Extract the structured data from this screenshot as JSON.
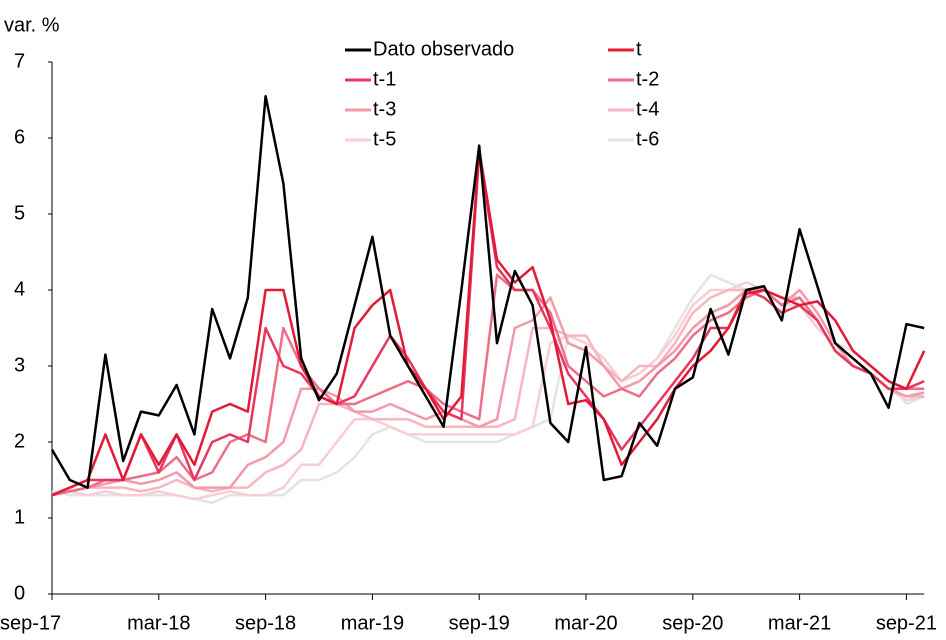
{
  "chart_data": {
    "type": "line",
    "y_label": "var. %",
    "categories": [
      "sep-17",
      null,
      null,
      null,
      null,
      null,
      "mar-18",
      null,
      null,
      null,
      null,
      null,
      "sep-18",
      null,
      null,
      null,
      null,
      null,
      "mar-19",
      null,
      null,
      null,
      null,
      null,
      "sep-19",
      null,
      null,
      null,
      null,
      null,
      "mar-20",
      null,
      null,
      null,
      null,
      null,
      "sep-20",
      null,
      null,
      null,
      null,
      null,
      "mar-21",
      null,
      null,
      null,
      null,
      null,
      "sep-21",
      null
    ],
    "ylim": [
      0,
      7
    ],
    "yticks": [
      0,
      1,
      2,
      3,
      4,
      5,
      6,
      7
    ],
    "series": [
      {
        "name": "t-6",
        "color": "#e4e4e6",
        "values": [
          1.35,
          1.3,
          1.3,
          1.3,
          1.3,
          1.3,
          1.3,
          1.3,
          1.25,
          1.2,
          1.3,
          1.3,
          1.3,
          1.3,
          1.5,
          1.5,
          1.6,
          1.8,
          2.1,
          2.2,
          2.1,
          2.0,
          2.0,
          2.0,
          2.0,
          2.0,
          2.1,
          2.2,
          2.3,
          3.4,
          3.3,
          3.1,
          2.8,
          2.9,
          3.1,
          3.5,
          3.9,
          4.2,
          4.1,
          4.0,
          4.0,
          3.8,
          3.8,
          3.5,
          3.3,
          3.2,
          3.0,
          2.8,
          2.5,
          2.6
        ]
      },
      {
        "name": "t-5",
        "color": "#f8cdd4",
        "values": [
          1.3,
          1.35,
          1.3,
          1.35,
          1.3,
          1.3,
          1.35,
          1.3,
          1.25,
          1.3,
          1.35,
          1.3,
          1.3,
          1.4,
          1.7,
          1.7,
          2.0,
          2.3,
          2.3,
          2.2,
          2.1,
          2.1,
          2.1,
          2.1,
          2.1,
          2.1,
          2.1,
          2.2,
          3.3,
          3.4,
          3.3,
          3.1,
          2.8,
          2.9,
          3.1,
          3.4,
          3.8,
          4.0,
          4.0,
          4.1,
          4.0,
          3.9,
          3.8,
          3.5,
          3.3,
          3.1,
          2.9,
          2.7,
          2.55,
          2.6
        ]
      },
      {
        "name": "t-4",
        "color": "#f6b6c1",
        "values": [
          1.3,
          1.35,
          1.4,
          1.4,
          1.4,
          1.35,
          1.4,
          1.5,
          1.4,
          1.35,
          1.4,
          1.4,
          1.6,
          1.7,
          1.9,
          2.5,
          2.5,
          2.4,
          2.3,
          2.3,
          2.3,
          2.2,
          2.2,
          2.2,
          2.2,
          2.2,
          2.3,
          3.5,
          3.5,
          3.4,
          3.4,
          3.0,
          2.8,
          3.0,
          3.0,
          3.3,
          3.7,
          3.9,
          4.0,
          4.0,
          4.0,
          3.9,
          3.9,
          3.6,
          3.2,
          3.0,
          2.9,
          2.7,
          2.6,
          2.6
        ]
      },
      {
        "name": "t-3",
        "color": "#f29aa9",
        "values": [
          1.3,
          1.35,
          1.4,
          1.45,
          1.5,
          1.45,
          1.5,
          1.6,
          1.4,
          1.4,
          1.4,
          1.7,
          1.8,
          2.0,
          2.7,
          2.7,
          2.6,
          2.4,
          2.4,
          2.5,
          2.4,
          2.3,
          2.4,
          2.3,
          2.2,
          2.3,
          3.5,
          3.6,
          3.9,
          3.3,
          3.2,
          3.0,
          2.7,
          2.8,
          3.0,
          3.2,
          3.5,
          3.7,
          3.8,
          4.0,
          4.0,
          3.8,
          4.0,
          3.7,
          3.3,
          3.0,
          2.9,
          2.7,
          2.6,
          2.65
        ]
      },
      {
        "name": "t-2",
        "color": "#ee6e88",
        "values": [
          1.3,
          1.35,
          1.4,
          1.5,
          1.5,
          1.55,
          1.6,
          1.8,
          1.5,
          1.6,
          2.0,
          2.1,
          2.0,
          3.5,
          3.0,
          2.7,
          2.5,
          2.5,
          2.6,
          2.7,
          2.8,
          2.7,
          2.5,
          2.4,
          2.3,
          4.2,
          4.0,
          4.0,
          3.7,
          3.0,
          2.8,
          2.6,
          2.7,
          2.6,
          2.9,
          3.1,
          3.4,
          3.6,
          3.7,
          3.9,
          4.0,
          3.8,
          3.9,
          3.6,
          3.2,
          3.0,
          2.9,
          2.7,
          2.7,
          2.7
        ]
      },
      {
        "name": "t-1",
        "color": "#e6375e",
        "values": [
          1.3,
          1.4,
          1.5,
          1.5,
          1.5,
          2.1,
          1.6,
          2.1,
          1.5,
          2.0,
          2.1,
          2.0,
          3.5,
          3.0,
          2.9,
          2.6,
          2.5,
          2.6,
          3.0,
          3.4,
          3.1,
          2.7,
          2.4,
          2.3,
          5.8,
          4.3,
          4.0,
          4.0,
          3.5,
          2.9,
          2.6,
          2.3,
          1.9,
          2.2,
          2.5,
          2.8,
          3.1,
          3.5,
          3.5,
          4.0,
          3.9,
          3.7,
          3.8,
          3.6,
          3.2,
          3.0,
          2.9,
          2.7,
          2.7,
          2.8
        ]
      },
      {
        "name": "t",
        "color": "#e11a36",
        "values": [
          1.3,
          1.4,
          1.5,
          2.1,
          1.5,
          2.1,
          1.7,
          2.1,
          1.7,
          2.4,
          2.5,
          2.4,
          4.0,
          4.0,
          3.0,
          2.6,
          2.5,
          3.5,
          3.8,
          4.0,
          3.0,
          2.7,
          2.3,
          2.6,
          5.85,
          4.4,
          4.1,
          4.3,
          3.6,
          2.5,
          2.55,
          2.3,
          1.7,
          2.0,
          2.3,
          2.7,
          3.0,
          3.2,
          3.5,
          3.95,
          4.0,
          3.9,
          3.8,
          3.85,
          3.6,
          3.2,
          3.0,
          2.8,
          2.7,
          3.2
        ]
      },
      {
        "name": "Dato observado",
        "color": "#000000",
        "values": [
          1.9,
          1.5,
          1.4,
          3.15,
          1.75,
          2.4,
          2.35,
          2.75,
          2.1,
          3.75,
          3.1,
          3.9,
          6.55,
          5.4,
          3.1,
          2.55,
          2.9,
          3.8,
          4.7,
          3.4,
          3.0,
          2.6,
          2.2,
          4.0,
          5.9,
          3.3,
          4.25,
          3.8,
          2.25,
          2.0,
          3.25,
          1.5,
          1.55,
          2.25,
          1.95,
          2.7,
          2.85,
          3.75,
          3.15,
          4.0,
          4.05,
          3.6,
          4.8,
          4.05,
          3.3,
          3.1,
          2.9,
          2.45,
          3.55,
          3.5
        ]
      }
    ],
    "legend_order": [
      "Dato observado",
      "t",
      "t-1",
      "t-2",
      "t-3",
      "t-4",
      "t-5",
      "t-6"
    ]
  }
}
